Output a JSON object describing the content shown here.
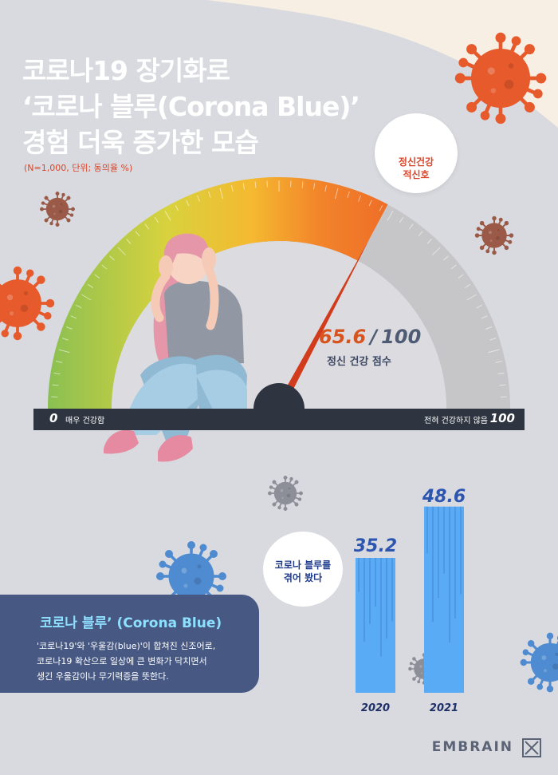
{
  "title": {
    "line1": "코로나19 장기화로",
    "line2": "‘코로나 블루(Corona Blue)’",
    "line3": "경험 더욱 증가한 모습"
  },
  "note": "(N=1,000, 단위; 동의율 %)",
  "siren": {
    "label_line1": "정신건강",
    "label_line2": "적신호",
    "icon": "siren-icon"
  },
  "gauge": {
    "score": "65.6",
    "separator": "/",
    "max": "100",
    "score_label": "정신 건강 점수",
    "min_label": "0",
    "min_desc": "매우 건강함",
    "max_desc": "전혀 건강하지 않음",
    "max_label": "100"
  },
  "chart_data": [
    {
      "type": "gauge",
      "value": 65.6,
      "range": [
        0,
        100
      ],
      "value_label": "65.6 / 100",
      "label": "정신 건강 점수",
      "min_text": "매우 건강함",
      "max_text": "전혀 건강하지 않음"
    },
    {
      "type": "bar",
      "categories": [
        "2020",
        "2021"
      ],
      "values": [
        35.2,
        48.6
      ],
      "value_labels": [
        "35.2",
        "48.6"
      ],
      "annotation": "코로나 블루를 겪어 봤다",
      "ylim": [
        0,
        50
      ],
      "colors": [
        "#5aabf5",
        "#5aabf5"
      ]
    }
  ],
  "bar_bubble": {
    "line1": "코로나 블루를",
    "line2": "겪어 봤다"
  },
  "definition": {
    "title": "코로나 블루’ (Corona Blue)",
    "line1": "'코로나19'와 '우울감(blue)'이 합쳐진 신조어로,",
    "line2": "코로나19 확산으로 일상에 큰 변화가 닥치면서",
    "line3": "생긴 우울감이나 무기력증을 뜻한다."
  },
  "brand": {
    "name": "EMBRAIN",
    "icon": "embrain-logo-icon"
  },
  "colors": {
    "background": "#d9dadf",
    "accent_red": "#d8462b",
    "bar_blue": "#5aabf5",
    "navy": "#475883",
    "virus_orange": "#e65a2c",
    "virus_blue": "#4f8bd1",
    "virus_brown": "#9b5a48",
    "virus_gray": "#8c8f98"
  }
}
